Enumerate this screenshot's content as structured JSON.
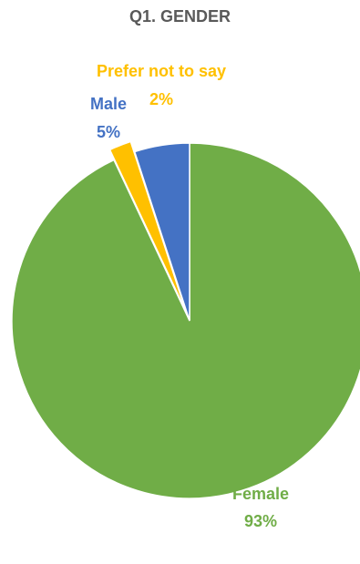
{
  "chart_data": {
    "type": "pie",
    "title": "Q1. GENDER",
    "categories": [
      "Female",
      "Prefer not to say",
      "Male"
    ],
    "values": [
      93,
      2,
      5
    ],
    "labels": [
      "93%",
      "2%",
      "5%"
    ],
    "colors": [
      "#70AD47",
      "#FFC000",
      "#4472C4"
    ],
    "exploded": [
      false,
      true,
      false
    ],
    "grid": false,
    "legend": "none"
  }
}
